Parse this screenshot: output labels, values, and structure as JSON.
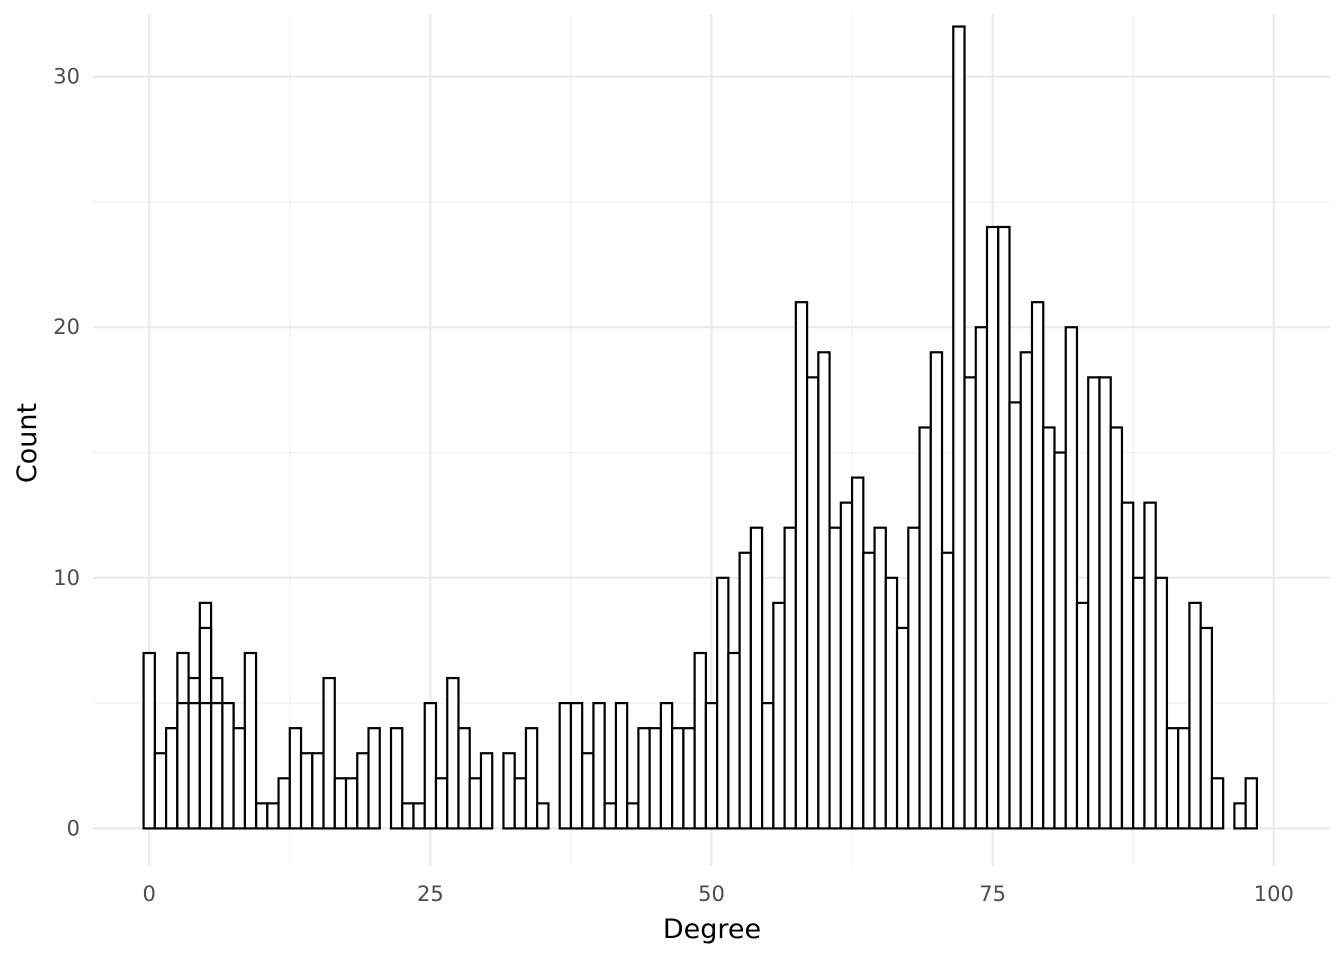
{
  "chart_data": {
    "type": "bar",
    "title": "",
    "xlabel": "Degree",
    "ylabel": "Count",
    "xlim": [
      -5,
      105
    ],
    "ylim": [
      -1.5,
      32.5
    ],
    "xticks": [
      0,
      25,
      50,
      75,
      100
    ],
    "yticks": [
      0,
      10,
      20,
      30
    ],
    "xtick_labels": [
      "0",
      "25",
      "50",
      "75",
      "100"
    ],
    "ytick_labels": [
      "0",
      "10",
      "20",
      "30"
    ],
    "grid": true,
    "legend": "none",
    "bin_width": 1,
    "bar_fill": "#ffffff",
    "bar_outline": "#000000",
    "series": [
      {
        "x": [
          0,
          1,
          2,
          3,
          4,
          5,
          6,
          7,
          8,
          9,
          10,
          11,
          12,
          13,
          14,
          15,
          16,
          17,
          18,
          19,
          20,
          21,
          22,
          23,
          24,
          25,
          26,
          27,
          28,
          29,
          30,
          31,
          32,
          33,
          34,
          35,
          36,
          37,
          38,
          39,
          40,
          41,
          42,
          43,
          44,
          45,
          46,
          47,
          48,
          49,
          50,
          51,
          52,
          53,
          54,
          55,
          56,
          57,
          58,
          59,
          60,
          61,
          62,
          63,
          64,
          65,
          66,
          67,
          68,
          69,
          70,
          71,
          72,
          73,
          74,
          75,
          76,
          77,
          78,
          79,
          80,
          81,
          82,
          83,
          84,
          85,
          86,
          87,
          88,
          89,
          90,
          91,
          92,
          93,
          94,
          95,
          96,
          97,
          98,
          99
        ],
        "values": [
          5,
          1,
          4,
          2,
          2,
          2,
          1,
          5,
          1,
          1,
          1,
          1,
          2,
          4,
          3,
          3,
          6,
          2,
          2,
          3,
          4,
          0,
          4,
          1,
          1,
          5,
          2,
          6,
          4,
          2,
          3,
          0,
          3,
          2,
          4,
          1,
          0,
          5,
          5,
          3,
          5,
          1,
          5,
          1,
          4,
          4,
          5,
          4,
          4,
          7,
          5,
          10,
          7,
          11,
          12,
          5,
          9,
          12,
          21,
          18,
          19,
          12,
          13,
          14,
          11,
          12,
          10,
          8,
          12,
          16,
          19,
          11,
          32,
          18,
          20,
          24,
          24,
          17,
          19,
          21,
          16,
          15,
          20,
          9,
          18,
          18,
          16,
          13,
          10,
          13,
          10,
          4,
          4,
          9,
          8,
          2,
          0,
          1,
          2,
          0
        ]
      },
      {
        "x": [
          0,
          1,
          2,
          3,
          4,
          5,
          6,
          7,
          8,
          9
        ],
        "values": [
          7,
          3,
          4,
          7,
          6,
          9,
          6,
          5,
          3,
          7
        ]
      },
      {
        "x": [
          3,
          4,
          5,
          6,
          8
        ],
        "values": [
          5,
          5,
          8,
          5,
          4
        ]
      },
      {
        "x": [
          5
        ],
        "values": [
          5
        ]
      }
    ]
  }
}
